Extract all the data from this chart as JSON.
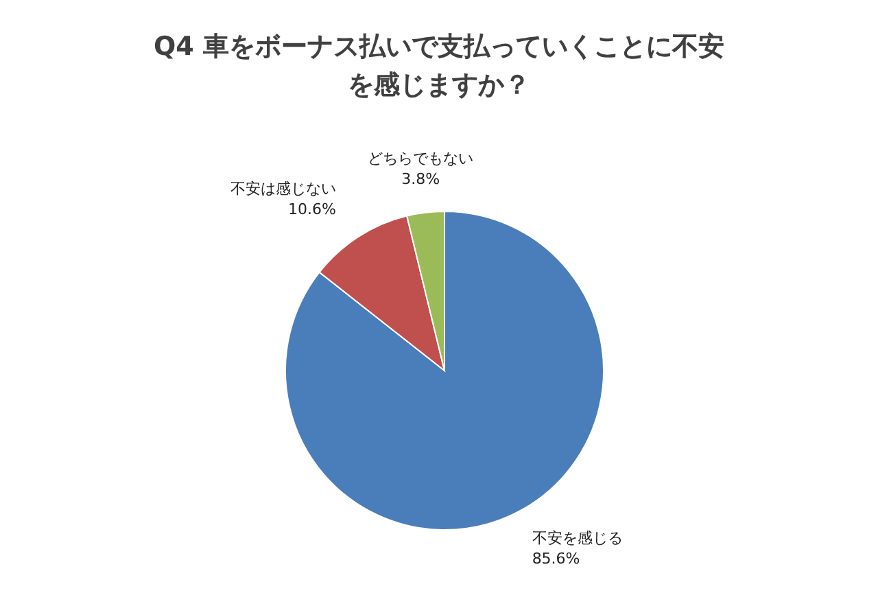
{
  "chart_data": {
    "type": "pie",
    "title": "Q4 車をボーナス払いで支払っていくことに不安を感じますか？",
    "categories": [
      "不安を感じる",
      "不安は感じない",
      "どちらでもない"
    ],
    "values": [
      85.6,
      10.6,
      3.8
    ],
    "colors": [
      "#4a7ebb",
      "#c0504d",
      "#9bbb59"
    ],
    "value_labels": [
      "85.6%",
      "10.6%",
      "3.8%"
    ]
  }
}
